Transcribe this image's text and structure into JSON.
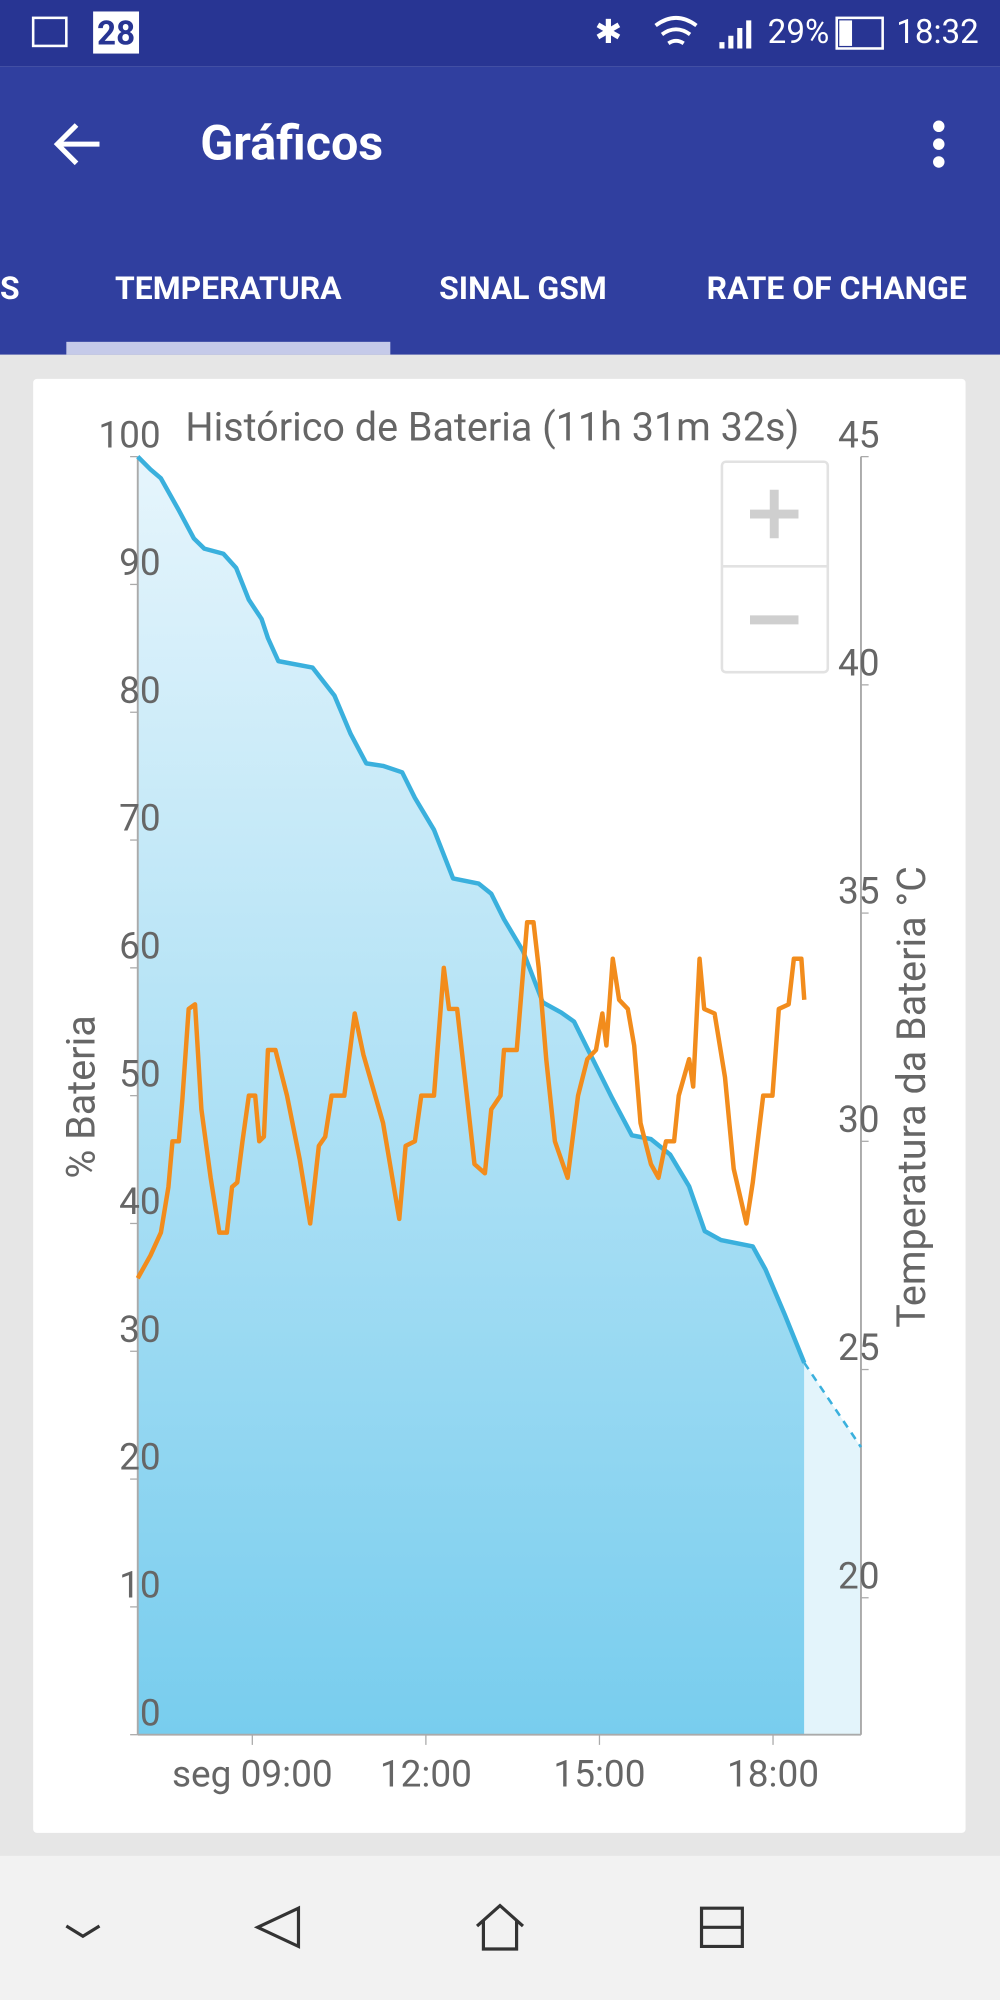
{
  "status_bar": {
    "date_icon": "28",
    "battery": "29%",
    "time": "18:32"
  },
  "app_bar": {
    "title": "Gráficos"
  },
  "tabs": [
    "S",
    "TEMPERATURA",
    "SINAL GSM",
    "RATE OF CHANGE"
  ],
  "selected_tab": 1,
  "chart_data": {
    "type": "line",
    "title": "Histórico de Bateria (11h 31m 32s)",
    "ylabel": "% Bateria",
    "y2label": "Temperatura da Bateria °C",
    "xlim": [
      7.02,
      19.52
    ],
    "xticks": [
      {
        "value": 9,
        "label": "seg 09:00"
      },
      {
        "value": 12,
        "label": "12:00"
      },
      {
        "value": 15,
        "label": "15:00"
      },
      {
        "value": 18,
        "label": "18:00"
      }
    ],
    "ylim": [
      0,
      100
    ],
    "yticks": [
      0,
      10,
      20,
      30,
      40,
      50,
      60,
      70,
      80,
      90,
      100
    ],
    "y2lim": [
      17,
      45
    ],
    "y2ticks": [
      20,
      25,
      30,
      35,
      40,
      45
    ],
    "series": [
      {
        "color": "#3ab0dd",
        "area": true,
        "axis": "y",
        "x": [
          7.02,
          7.24,
          7.42,
          7.73,
          7.99,
          8.17,
          8.5,
          8.72,
          8.94,
          9.16,
          9.27,
          9.45,
          10.04,
          10.42,
          10.7,
          10.97,
          11.26,
          11.59,
          11.81,
          12.14,
          12.47,
          12.91,
          13.13,
          13.35,
          13.68,
          14.02,
          14.34,
          14.56,
          14.78,
          15.22,
          15.56,
          15.89,
          16.22,
          16.55,
          16.82,
          17.1,
          17.65,
          17.87,
          18.2,
          18.54
        ],
        "values": [
          100,
          99,
          98.3,
          95.8,
          93.6,
          92.8,
          92.4,
          91.3,
          88.8,
          87.3,
          85.8,
          84,
          83.5,
          81.3,
          78.3,
          76,
          75.8,
          75.3,
          73.3,
          70.8,
          67,
          66.6,
          65.8,
          63.8,
          61.3,
          57.3,
          56.5,
          55.8,
          53.8,
          49.8,
          46.9,
          46.6,
          45.4,
          42.9,
          39.4,
          38.7,
          38.2,
          36.4,
          32.9,
          29.1
        ]
      },
      {
        "color": "#3ab0dd",
        "area": true,
        "dashed": true,
        "axis": "y",
        "x": [
          18.54,
          19.52
        ],
        "values": [
          29.1,
          22.5
        ]
      },
      {
        "color": "#f28c1c",
        "area": false,
        "axis": "y2",
        "x": [
          7.02,
          7.24,
          7.42,
          7.55,
          7.62,
          7.73,
          7.79,
          7.9,
          8.01,
          8.12,
          8.28,
          8.43,
          8.56,
          8.65,
          8.74,
          8.83,
          8.94,
          9.05,
          9.12,
          9.2,
          9.27,
          9.4,
          9.6,
          9.82,
          10.0,
          10.15,
          10.26,
          10.37,
          10.59,
          10.77,
          10.92,
          11.26,
          11.54,
          11.65,
          11.81,
          11.92,
          12.14,
          12.31,
          12.4,
          12.54,
          12.69,
          12.84,
          13.02,
          13.13,
          13.29,
          13.35,
          13.57,
          13.75,
          13.86,
          13.95,
          14.08,
          14.23,
          14.45,
          14.63,
          14.79,
          14.94,
          15.05,
          15.12,
          15.23,
          15.34,
          15.49,
          15.6,
          15.71,
          15.89,
          16.02,
          16.15,
          16.29,
          16.37,
          16.55,
          16.62,
          16.73,
          16.81,
          16.99,
          17.17,
          17.32,
          17.54,
          17.65,
          17.83,
          17.99,
          18.1,
          18.27,
          18.36,
          18.49,
          18.54
        ],
        "values": [
          27.0,
          27.5,
          28.0,
          29.0,
          30.0,
          30.0,
          30.9,
          32.9,
          33.0,
          30.7,
          29.2,
          28.0,
          28.0,
          29.0,
          29.1,
          30.0,
          31.0,
          31.0,
          30.0,
          30.1,
          32.0,
          32.0,
          31.0,
          29.6,
          28.2,
          29.9,
          30.1,
          31.0,
          31.0,
          32.8,
          31.9,
          30.4,
          28.3,
          29.9,
          30.0,
          31.0,
          31.0,
          33.8,
          32.9,
          32.9,
          31.2,
          29.5,
          29.3,
          30.7,
          31.0,
          32.0,
          32.0,
          34.8,
          34.8,
          33.8,
          31.8,
          30.0,
          29.2,
          31.0,
          31.8,
          32.0,
          32.8,
          32.1,
          34.0,
          33.1,
          32.9,
          32.1,
          30.4,
          29.5,
          29.2,
          30.0,
          30.0,
          31.0,
          31.8,
          31.2,
          34.0,
          32.9,
          32.8,
          31.4,
          29.4,
          28.2,
          29.1,
          31.0,
          31.0,
          32.9,
          33.0,
          34.0,
          34.0,
          33.1
        ]
      }
    ]
  }
}
